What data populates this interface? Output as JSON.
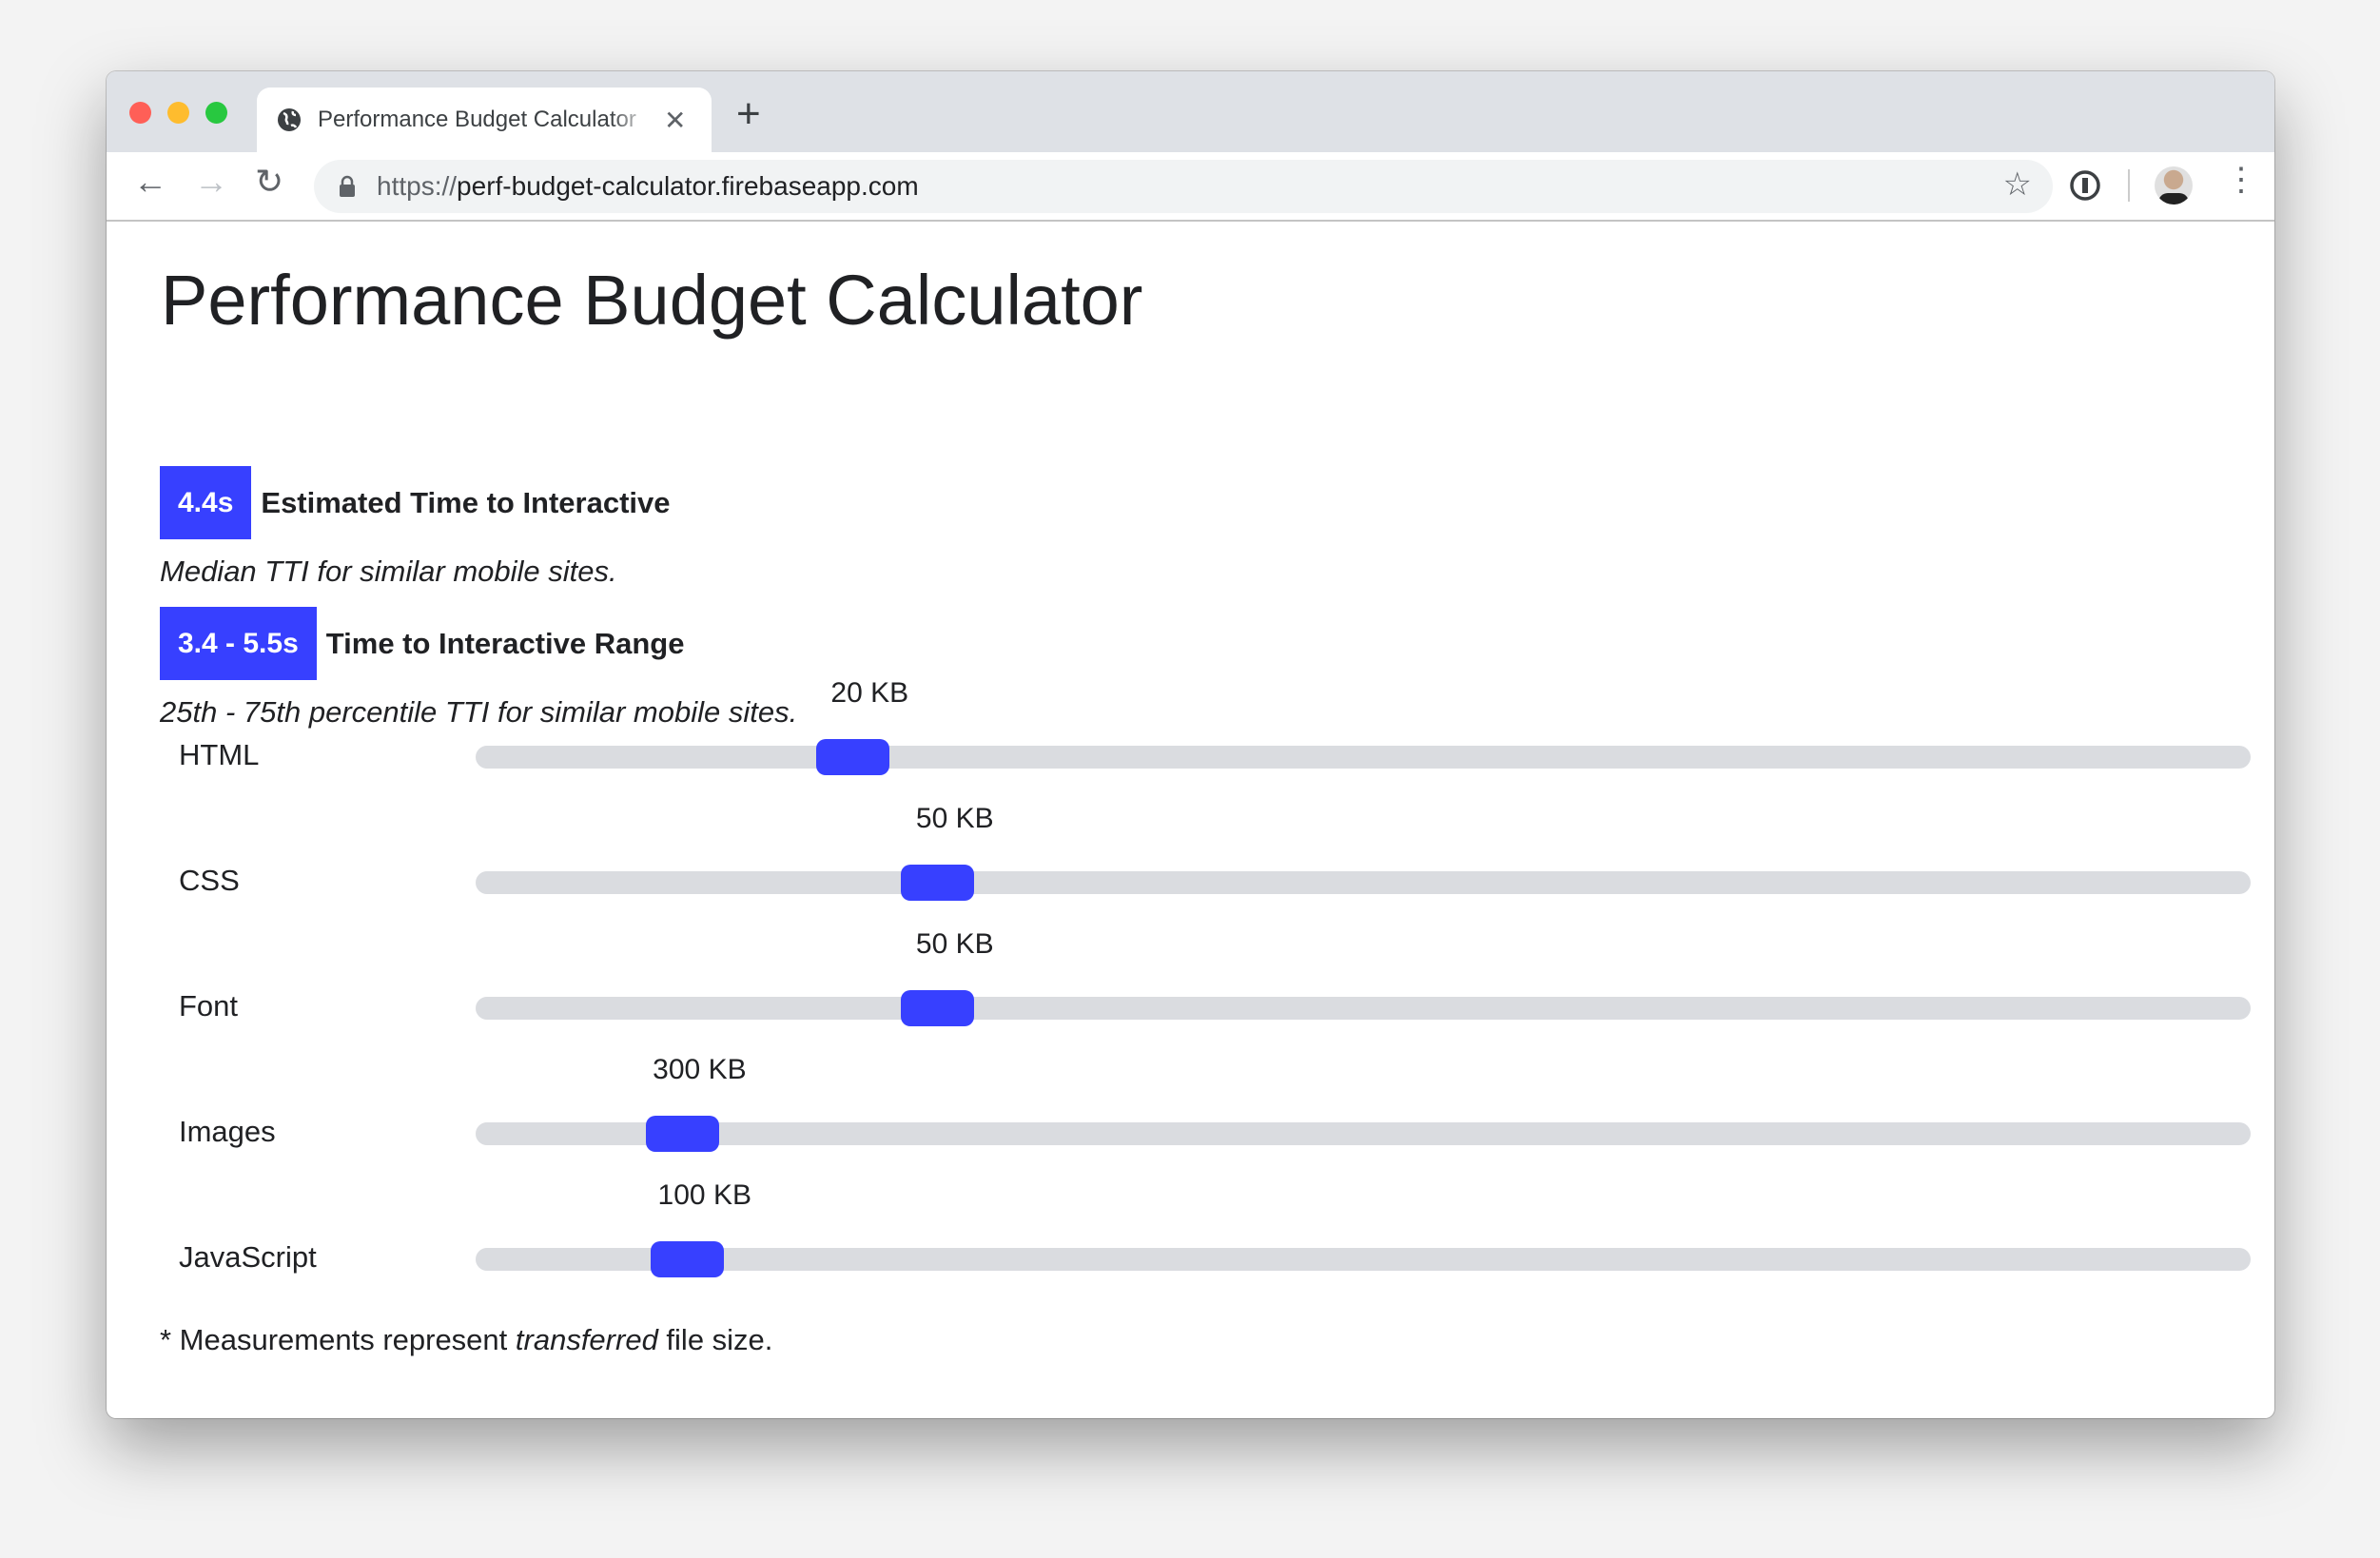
{
  "browser": {
    "tab_title": "Performance Budget Calculator",
    "url_scheme": "https://",
    "url_host": "perf-budget-calculator.firebaseapp.com",
    "icons": [
      "globe-icon",
      "close-icon",
      "plus-icon",
      "back-icon",
      "forward-icon",
      "reload-icon",
      "lock-icon",
      "star-icon",
      "password-manager-icon",
      "avatar",
      "more-vert-icon"
    ]
  },
  "page": {
    "title": "Performance Budget Calculator",
    "tti": {
      "value": "4.4s",
      "label": "Estimated Time to Interactive",
      "desc": "Median TTI for similar mobile sites."
    },
    "range": {
      "value": "3.4 - 5.5s",
      "label": "Time to Interactive Range",
      "desc": "25th - 75th percentile TTI for similar mobile sites."
    },
    "sliders": [
      {
        "label": "HTML",
        "value": "20 KB",
        "fraction": 0.2
      },
      {
        "label": "CSS",
        "value": "50 KB",
        "fraction": 0.25
      },
      {
        "label": "Font",
        "value": "50 KB",
        "fraction": 0.25
      },
      {
        "label": "Images",
        "value": "300 KB",
        "fraction": 0.1
      },
      {
        "label": "JavaScript",
        "value": "100 KB",
        "fraction": 0.103
      }
    ],
    "footnote_pre": "* Measurements represent ",
    "footnote_em": "transferred",
    "footnote_post": " file size."
  },
  "colors": {
    "accent": "#3740ff",
    "track": "#dadce0"
  }
}
